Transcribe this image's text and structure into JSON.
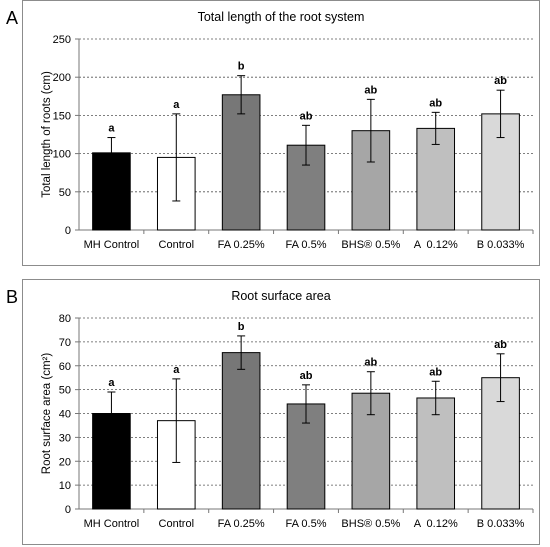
{
  "chart_data": [
    {
      "panel": "A",
      "type": "bar",
      "title": "Total length of the root system",
      "xlabel": "",
      "ylabel": "Total length of roots (cm)",
      "ylim": [
        0,
        250
      ],
      "yticks": [
        0,
        50,
        100,
        150,
        200,
        250
      ],
      "grid": "horizontal dashed",
      "categories": [
        "MH Control",
        "Control",
        "FA 0.25%",
        "FA 0.5%",
        "BHS® 0.5%",
        "A  0.12%",
        "B 0.033%"
      ],
      "values": [
        101,
        95,
        177,
        111,
        130,
        133,
        152
      ],
      "errors": [
        20,
        57,
        25,
        26,
        41,
        21,
        31
      ],
      "labels": [
        "a",
        "a",
        "b",
        "ab",
        "ab",
        "ab",
        "ab"
      ],
      "bar_colors": [
        "#000000",
        "#ffffff",
        "#777777",
        "#7f7f7f",
        "#a6a6a6",
        "#bfbfbf",
        "#d9d9d9"
      ]
    },
    {
      "panel": "B",
      "type": "bar",
      "title": "Root surface area",
      "xlabel": "",
      "ylabel": "Root surface area (cm²)",
      "ylim": [
        0,
        80
      ],
      "yticks": [
        0,
        10,
        20,
        30,
        40,
        50,
        60,
        70,
        80
      ],
      "grid": "horizontal dashed",
      "categories": [
        "MH Control",
        "Control",
        "FA 0.25%",
        "FA 0.5%",
        "BHS® 0.5%",
        "A  0.12%",
        "B 0.033%"
      ],
      "values": [
        40,
        37,
        65.5,
        44,
        48.5,
        46.5,
        55
      ],
      "errors": [
        9,
        17.5,
        7,
        8,
        9,
        7,
        10
      ],
      "labels": [
        "a",
        "a",
        "b",
        "ab",
        "ab",
        "ab",
        "ab"
      ],
      "bar_colors": [
        "#000000",
        "#ffffff",
        "#777777",
        "#7f7f7f",
        "#a6a6a6",
        "#bfbfbf",
        "#d9d9d9"
      ]
    }
  ]
}
